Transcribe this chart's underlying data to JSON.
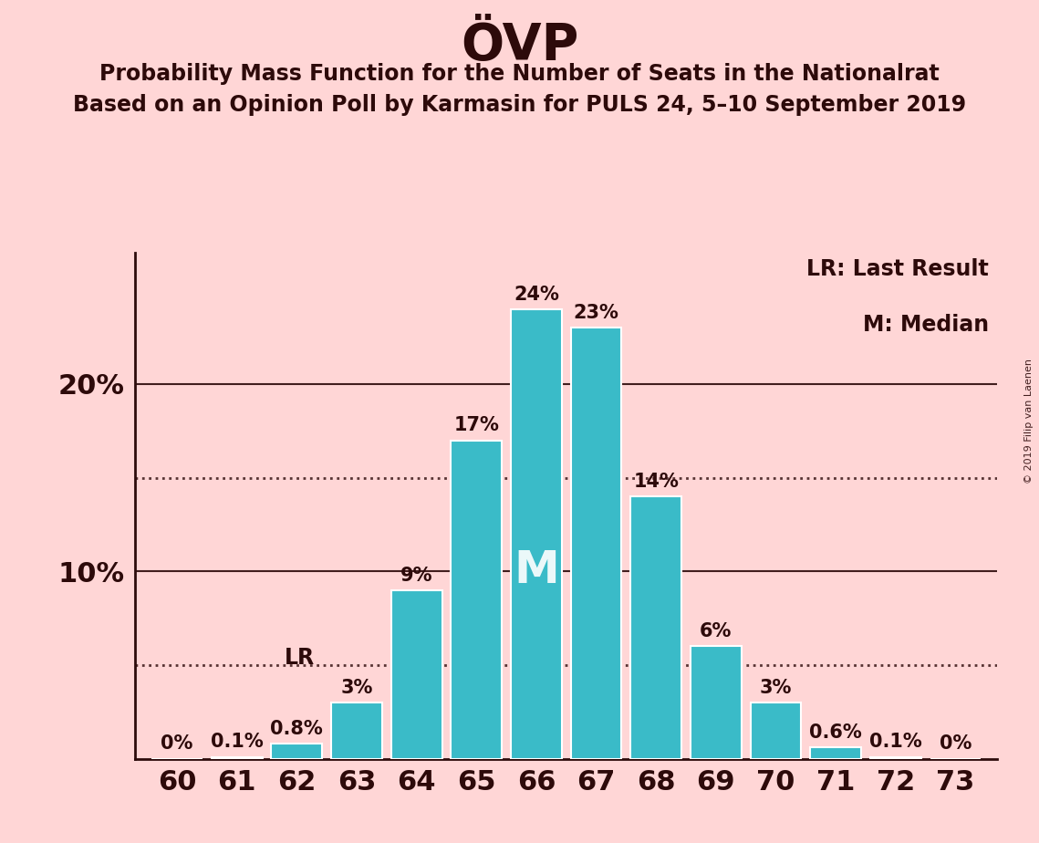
{
  "title": "ÖVP",
  "subtitle1": "Probability Mass Function for the Number of Seats in the Nationalrat",
  "subtitle2": "Based on an Opinion Poll by Karmasin for PULS 24, 5–10 September 2019",
  "watermark": "© 2019 Filip van Laenen",
  "seats": [
    60,
    61,
    62,
    63,
    64,
    65,
    66,
    67,
    68,
    69,
    70,
    71,
    72,
    73
  ],
  "probabilities": [
    0.0,
    0.1,
    0.8,
    3.0,
    9.0,
    17.0,
    24.0,
    23.0,
    14.0,
    6.0,
    3.0,
    0.6,
    0.1,
    0.0
  ],
  "bar_color": "#3abbc8",
  "background_color": "#ffd6d6",
  "text_color": "#2d0a0a",
  "yticks": [
    10,
    20
  ],
  "ylim": [
    0,
    27
  ],
  "dotted_lines": [
    5,
    15
  ],
  "lr_seat": 62,
  "median_seat": 66,
  "legend_lr": "LR: Last Result",
  "legend_m": "M: Median"
}
